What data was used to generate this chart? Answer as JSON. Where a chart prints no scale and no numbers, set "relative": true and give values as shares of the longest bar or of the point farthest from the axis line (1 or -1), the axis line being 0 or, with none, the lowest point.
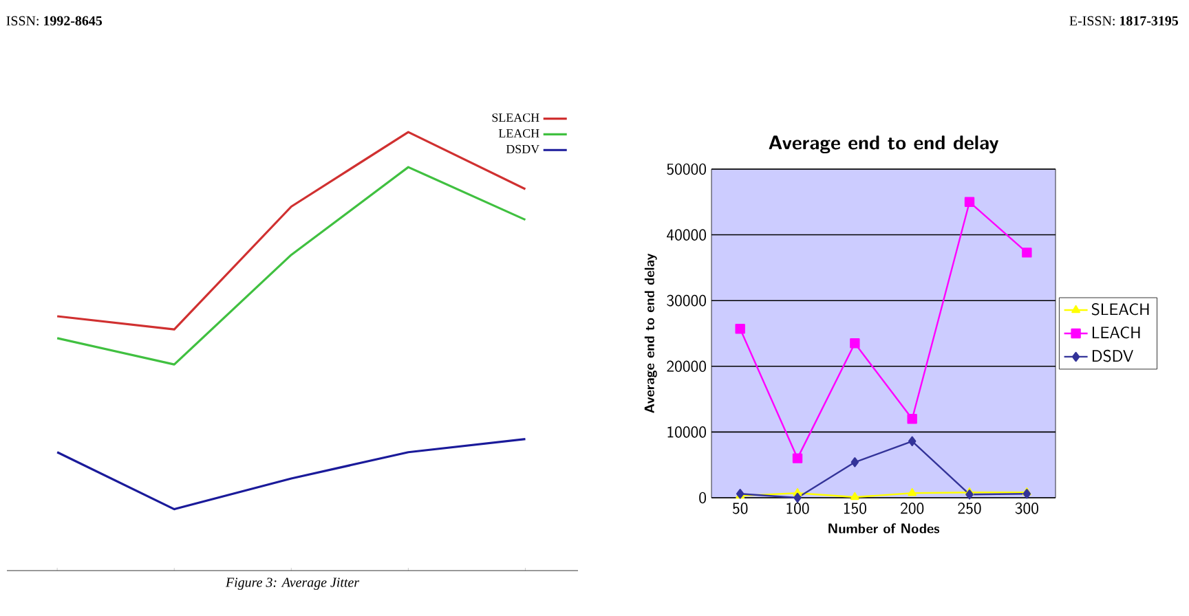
{
  "chart_data": [
    {
      "type": "line",
      "relative": true,
      "grid": false,
      "legend": "top right",
      "marker": "none",
      "categories": [
        null,
        null,
        null,
        null,
        null
      ],
      "series": [
        {
          "name": "SLEACH",
          "color": "#d03030",
          "values": [
            0.58,
            0.55,
            0.83,
            1,
            0.87
          ]
        },
        {
          "name": "LEACH",
          "color": "#40c040",
          "values": [
            0.53,
            0.47,
            0.72,
            0.92,
            0.8
          ]
        },
        {
          "name": "DSDV",
          "color": "#1a1a9a",
          "values": [
            0.27,
            0.14,
            0.21,
            0.27,
            0.3
          ]
        }
      ],
      "annotations": [
        "ISSN: **1992-8645**",
        "E-ISSN: **1817-3195**",
        "*Figure 3: Average Jitter*"
      ]
    },
    {
      "type": "line",
      "title": "Average end to end delay",
      "xlabel": "Number of Nodes",
      "ylabel": "Average end to end delay",
      "categories": [
        "50",
        "100",
        "150",
        "200",
        "250",
        "300"
      ],
      "ylim": [
        0,
        50000
      ],
      "yticks": [
        0,
        10000,
        20000,
        30000,
        40000,
        50000
      ],
      "grid": "y",
      "legend": "right",
      "series": [
        {
          "name": "SLEACH",
          "color": "#ffff00",
          "marker": "triangle",
          "values": [
            300,
            700,
            100,
            700,
            800,
            800
          ]
        },
        {
          "name": "LEACH",
          "color": "#ff00ff",
          "marker": "square",
          "values": [
            25700,
            6000,
            23500,
            12000,
            45000,
            37300
          ]
        },
        {
          "name": "DSDV",
          "color": "#333399",
          "marker": "diamond",
          "values": [
            600,
            0,
            5400,
            8600,
            500,
            600
          ]
        }
      ]
    }
  ]
}
